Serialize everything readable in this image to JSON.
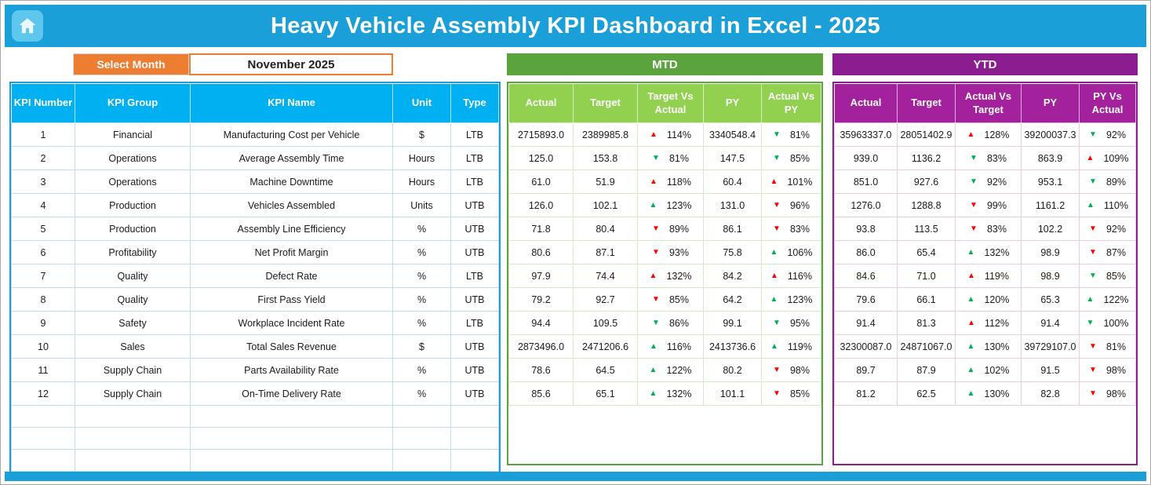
{
  "header": {
    "title": "Heavy Vehicle Assembly KPI Dashboard in Excel - 2025"
  },
  "month_selector": {
    "label": "Select Month",
    "value": "November 2025"
  },
  "main_table": {
    "headers": [
      "KPI Number",
      "KPI Group",
      "KPI Name",
      "Unit",
      "Type"
    ]
  },
  "mtd": {
    "title": "MTD",
    "headers": [
      "Actual",
      "Target",
      "Target Vs Actual",
      "PY",
      "Actual Vs PY"
    ]
  },
  "ytd": {
    "title": "YTD",
    "headers": [
      "Actual",
      "Target",
      "Actual Vs Target",
      "PY",
      "PY Vs Actual"
    ]
  },
  "rows": [
    {
      "number": "1",
      "group": "Financial",
      "name": "Manufacturing Cost per Vehicle",
      "unit": "$",
      "type": "LTB",
      "mtd": {
        "actual": "2715893.0",
        "target": "2389985.8",
        "tva": {
          "arrow": "up",
          "color": "red",
          "value": "114%"
        },
        "py": "3340548.4",
        "avp": {
          "arrow": "down",
          "color": "green",
          "value": "81%"
        }
      },
      "ytd": {
        "actual": "35963337.0",
        "target": "28051402.9",
        "avt": {
          "arrow": "up",
          "color": "red",
          "value": "128%"
        },
        "py": "39200037.3",
        "pva": {
          "arrow": "down",
          "color": "green",
          "value": "92%"
        }
      }
    },
    {
      "number": "2",
      "group": "Operations",
      "name": "Average Assembly Time",
      "unit": "Hours",
      "type": "LTB",
      "mtd": {
        "actual": "125.0",
        "target": "153.8",
        "tva": {
          "arrow": "down",
          "color": "green",
          "value": "81%"
        },
        "py": "147.5",
        "avp": {
          "arrow": "down",
          "color": "green",
          "value": "85%"
        }
      },
      "ytd": {
        "actual": "939.0",
        "target": "1136.2",
        "avt": {
          "arrow": "down",
          "color": "green",
          "value": "83%"
        },
        "py": "863.9",
        "pva": {
          "arrow": "up",
          "color": "red",
          "value": "109%"
        }
      }
    },
    {
      "number": "3",
      "group": "Operations",
      "name": "Machine Downtime",
      "unit": "Hours",
      "type": "LTB",
      "mtd": {
        "actual": "61.0",
        "target": "51.9",
        "tva": {
          "arrow": "up",
          "color": "red",
          "value": "118%"
        },
        "py": "60.4",
        "avp": {
          "arrow": "up",
          "color": "red",
          "value": "101%"
        }
      },
      "ytd": {
        "actual": "851.0",
        "target": "927.6",
        "avt": {
          "arrow": "down",
          "color": "green",
          "value": "92%"
        },
        "py": "953.1",
        "pva": {
          "arrow": "down",
          "color": "green",
          "value": "89%"
        }
      }
    },
    {
      "number": "4",
      "group": "Production",
      "name": "Vehicles Assembled",
      "unit": "Units",
      "type": "UTB",
      "mtd": {
        "actual": "126.0",
        "target": "102.1",
        "tva": {
          "arrow": "up",
          "color": "green",
          "value": "123%"
        },
        "py": "131.0",
        "avp": {
          "arrow": "down",
          "color": "red",
          "value": "96%"
        }
      },
      "ytd": {
        "actual": "1276.0",
        "target": "1288.8",
        "avt": {
          "arrow": "down",
          "color": "red",
          "value": "99%"
        },
        "py": "1161.2",
        "pva": {
          "arrow": "up",
          "color": "green",
          "value": "110%"
        }
      }
    },
    {
      "number": "5",
      "group": "Production",
      "name": "Assembly Line Efficiency",
      "unit": "%",
      "type": "UTB",
      "mtd": {
        "actual": "71.8",
        "target": "80.4",
        "tva": {
          "arrow": "down",
          "color": "red",
          "value": "89%"
        },
        "py": "86.1",
        "avp": {
          "arrow": "down",
          "color": "red",
          "value": "83%"
        }
      },
      "ytd": {
        "actual": "93.8",
        "target": "113.5",
        "avt": {
          "arrow": "down",
          "color": "red",
          "value": "83%"
        },
        "py": "102.2",
        "pva": {
          "arrow": "down",
          "color": "red",
          "value": "92%"
        }
      }
    },
    {
      "number": "6",
      "group": "Profitability",
      "name": "Net Profit Margin",
      "unit": "%",
      "type": "UTB",
      "mtd": {
        "actual": "80.6",
        "target": "87.1",
        "tva": {
          "arrow": "down",
          "color": "red",
          "value": "93%"
        },
        "py": "75.8",
        "avp": {
          "arrow": "up",
          "color": "green",
          "value": "106%"
        }
      },
      "ytd": {
        "actual": "86.0",
        "target": "65.4",
        "avt": {
          "arrow": "up",
          "color": "green",
          "value": "132%"
        },
        "py": "98.9",
        "pva": {
          "arrow": "down",
          "color": "red",
          "value": "87%"
        }
      }
    },
    {
      "number": "7",
      "group": "Quality",
      "name": "Defect Rate",
      "unit": "%",
      "type": "LTB",
      "mtd": {
        "actual": "97.9",
        "target": "74.4",
        "tva": {
          "arrow": "up",
          "color": "red",
          "value": "132%"
        },
        "py": "84.2",
        "avp": {
          "arrow": "up",
          "color": "red",
          "value": "116%"
        }
      },
      "ytd": {
        "actual": "84.6",
        "target": "71.0",
        "avt": {
          "arrow": "up",
          "color": "red",
          "value": "119%"
        },
        "py": "98.9",
        "pva": {
          "arrow": "down",
          "color": "green",
          "value": "85%"
        }
      }
    },
    {
      "number": "8",
      "group": "Quality",
      "name": "First Pass Yield",
      "unit": "%",
      "type": "UTB",
      "mtd": {
        "actual": "79.2",
        "target": "92.7",
        "tva": {
          "arrow": "down",
          "color": "red",
          "value": "85%"
        },
        "py": "64.2",
        "avp": {
          "arrow": "up",
          "color": "green",
          "value": "123%"
        }
      },
      "ytd": {
        "actual": "79.6",
        "target": "66.1",
        "avt": {
          "arrow": "up",
          "color": "green",
          "value": "120%"
        },
        "py": "65.3",
        "pva": {
          "arrow": "up",
          "color": "green",
          "value": "122%"
        }
      }
    },
    {
      "number": "9",
      "group": "Safety",
      "name": "Workplace Incident Rate",
      "unit": "%",
      "type": "LTB",
      "mtd": {
        "actual": "94.4",
        "target": "109.5",
        "tva": {
          "arrow": "down",
          "color": "green",
          "value": "86%"
        },
        "py": "99.1",
        "avp": {
          "arrow": "down",
          "color": "green",
          "value": "95%"
        }
      },
      "ytd": {
        "actual": "91.4",
        "target": "81.3",
        "avt": {
          "arrow": "up",
          "color": "red",
          "value": "112%"
        },
        "py": "91.4",
        "pva": {
          "arrow": "down",
          "color": "green",
          "value": "100%"
        }
      }
    },
    {
      "number": "10",
      "group": "Sales",
      "name": "Total Sales Revenue",
      "unit": "$",
      "type": "UTB",
      "mtd": {
        "actual": "2873496.0",
        "target": "2471206.6",
        "tva": {
          "arrow": "up",
          "color": "green",
          "value": "116%"
        },
        "py": "2413736.6",
        "avp": {
          "arrow": "up",
          "color": "green",
          "value": "119%"
        }
      },
      "ytd": {
        "actual": "32300087.0",
        "target": "24871067.0",
        "avt": {
          "arrow": "up",
          "color": "green",
          "value": "130%"
        },
        "py": "39729107.0",
        "pva": {
          "arrow": "down",
          "color": "red",
          "value": "81%"
        }
      }
    },
    {
      "number": "11",
      "group": "Supply Chain",
      "name": "Parts Availability Rate",
      "unit": "%",
      "type": "UTB",
      "mtd": {
        "actual": "78.6",
        "target": "64.5",
        "tva": {
          "arrow": "up",
          "color": "green",
          "value": "122%"
        },
        "py": "80.2",
        "avp": {
          "arrow": "down",
          "color": "red",
          "value": "98%"
        }
      },
      "ytd": {
        "actual": "89.7",
        "target": "87.9",
        "avt": {
          "arrow": "up",
          "color": "green",
          "value": "102%"
        },
        "py": "91.5",
        "pva": {
          "arrow": "down",
          "color": "red",
          "value": "98%"
        }
      }
    },
    {
      "number": "12",
      "group": "Supply Chain",
      "name": "On-Time Delivery Rate",
      "unit": "%",
      "type": "UTB",
      "mtd": {
        "actual": "85.6",
        "target": "65.1",
        "tva": {
          "arrow": "up",
          "color": "green",
          "value": "132%"
        },
        "py": "101.1",
        "avp": {
          "arrow": "down",
          "color": "red",
          "value": "85%"
        }
      },
      "ytd": {
        "actual": "81.2",
        "target": "62.5",
        "avt": {
          "arrow": "up",
          "color": "green",
          "value": "130%"
        },
        "py": "82.8",
        "pva": {
          "arrow": "down",
          "color": "red",
          "value": "98%"
        }
      }
    }
  ],
  "colors": {
    "header_blue": "#1B9FD8",
    "home_square_blue": "#5FC6EE",
    "orange": "#ED7D31",
    "table_header_blue": "#00B0F0",
    "main_border_blue": "#1E9BD7",
    "main_grid_line": "#BFDDF2",
    "mtd_band_green": "#5BA33C",
    "mtd_header_green": "#92D050",
    "mtd_grid_line": "#D5EAC2",
    "ytd_band_purple": "#8B1D90",
    "ytd_header_purple": "#A3219C",
    "ytd_grid_line": "#E7CCE3",
    "arrow_red": "#FF0000",
    "arrow_green": "#00B050"
  }
}
